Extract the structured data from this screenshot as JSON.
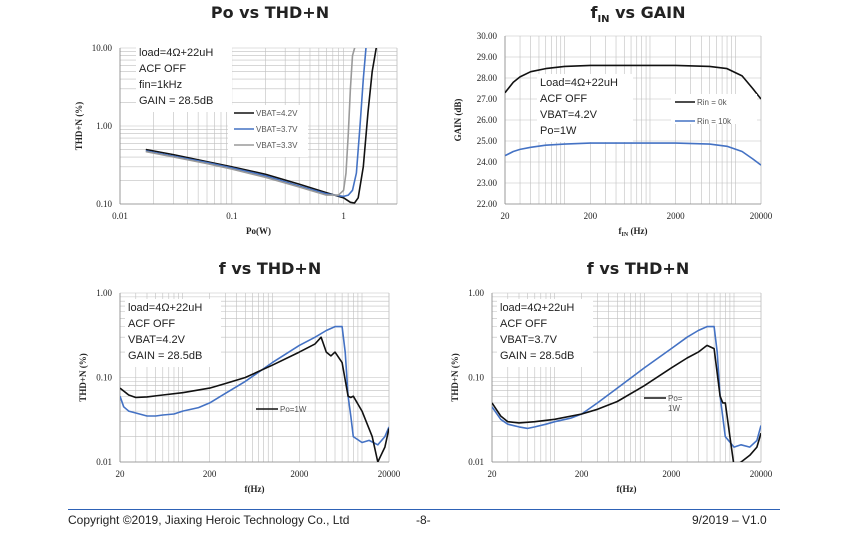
{
  "colors": {
    "black": "#111111",
    "blue": "#4472c4",
    "gray": "#9a9a9a",
    "grid": "#bfbfbf"
  },
  "footer": {
    "copyright": "Copyright ©2019, Jiaxing Heroic Technology Co., Ltd",
    "page": "-8-",
    "version": "9/2019 – V1.0"
  },
  "chart_data": [
    {
      "type": "line",
      "title": "Po vs THD+N",
      "xlabel": "Po(W)",
      "ylabel": "THD+N (%)",
      "x_scale": "log",
      "y_scale": "log",
      "xlim": [
        0.01,
        3
      ],
      "ylim": [
        0.1,
        10
      ],
      "x_ticks": [
        "0.01",
        "0.1",
        "1"
      ],
      "y_ticks": [
        "0.10",
        "1.00",
        "10.00"
      ],
      "annotations": [
        "load=4Ω+22uH",
        "ACF OFF",
        "fin=1kHz",
        "GAIN = 28.5dB"
      ],
      "legend_position": "middle-right",
      "series": [
        {
          "name": "VBAT=4.2V",
          "color": "black",
          "x": [
            0.017,
            0.03,
            0.06,
            0.1,
            0.2,
            0.4,
            0.7,
            1.0,
            1.15,
            1.25,
            1.35,
            1.5,
            1.65,
            1.8,
            2.0
          ],
          "y": [
            0.5,
            0.43,
            0.35,
            0.3,
            0.24,
            0.18,
            0.14,
            0.12,
            0.105,
            0.103,
            0.12,
            0.3,
            1.5,
            5.0,
            12.0
          ]
        },
        {
          "name": "VBAT=3.7V",
          "color": "blue",
          "x": [
            0.017,
            0.03,
            0.06,
            0.1,
            0.2,
            0.4,
            0.7,
            1.0,
            1.1,
            1.2,
            1.3,
            1.4,
            1.5,
            1.6
          ],
          "y": [
            0.48,
            0.41,
            0.34,
            0.29,
            0.23,
            0.17,
            0.135,
            0.125,
            0.13,
            0.15,
            0.25,
            1.0,
            4.0,
            12.0
          ]
        },
        {
          "name": "VBAT=3.3V",
          "color": "gray",
          "x": [
            0.017,
            0.03,
            0.06,
            0.1,
            0.2,
            0.4,
            0.7,
            0.9,
            1.0,
            1.05,
            1.1,
            1.15,
            1.2,
            1.3
          ],
          "y": [
            0.47,
            0.4,
            0.33,
            0.28,
            0.22,
            0.165,
            0.13,
            0.13,
            0.15,
            0.25,
            0.8,
            3.0,
            8.0,
            12.0
          ]
        }
      ]
    },
    {
      "type": "line",
      "title": "fIN vs GAIN",
      "title_main": "f",
      "title_sub": "IN",
      "title_rest": " vs GAIN",
      "xlabel_main": "f",
      "xlabel_sub": "IN",
      "xlabel_rest": " (Hz)",
      "ylabel": "GAIN (dB)",
      "x_scale": "log",
      "y_scale": "linear",
      "xlim": [
        20,
        20000
      ],
      "ylim": [
        22,
        30
      ],
      "x_ticks": [
        "20",
        "200",
        "2000",
        "20000"
      ],
      "y_ticks": [
        "22.00",
        "23.00",
        "24.00",
        "25.00",
        "26.00",
        "27.00",
        "28.00",
        "29.00",
        "30.00"
      ],
      "annotations": [
        "Load=4Ω+22uH",
        "ACF OFF",
        "VBAT=4.2V",
        "Po=1W"
      ],
      "legend_position": "middle-right",
      "series": [
        {
          "name": "Rin = 0k",
          "color": "black",
          "x": [
            20,
            25,
            30,
            40,
            60,
            100,
            200,
            500,
            2000,
            5000,
            8000,
            12000,
            16000,
            20000
          ],
          "y": [
            27.3,
            27.8,
            28.05,
            28.3,
            28.45,
            28.55,
            28.6,
            28.6,
            28.6,
            28.55,
            28.45,
            28.1,
            27.5,
            27.0
          ]
        },
        {
          "name": "Rin = 10k",
          "color": "blue",
          "x": [
            20,
            25,
            30,
            40,
            60,
            100,
            200,
            500,
            2000,
            5000,
            8000,
            12000,
            16000,
            20000
          ],
          "y": [
            24.3,
            24.5,
            24.6,
            24.7,
            24.8,
            24.85,
            24.9,
            24.9,
            24.9,
            24.85,
            24.75,
            24.5,
            24.15,
            23.85
          ]
        }
      ]
    },
    {
      "type": "line",
      "title": "f vs THD+N",
      "xlabel": "f(Hz)",
      "ylabel": "THD+N (%)",
      "x_scale": "log",
      "y_scale": "log",
      "xlim": [
        20,
        20000
      ],
      "ylim": [
        0.01,
        1
      ],
      "x_ticks": [
        "20",
        "200",
        "2000",
        "20000"
      ],
      "y_ticks": [
        "0.01",
        "0.10",
        "1.00"
      ],
      "annotations": [
        "load=4Ω+22uH",
        "ACF OFF",
        "VBAT=4.2V",
        "GAIN = 28.5dB"
      ],
      "legend_position": "middle-right",
      "series": [
        {
          "name": "Po=1W",
          "color": "black",
          "x": [
            20,
            25,
            30,
            40,
            60,
            100,
            200,
            300,
            500,
            1000,
            2000,
            3000,
            3500,
            4000,
            4500,
            5000,
            6000,
            7000,
            7500,
            8000,
            10000,
            13000,
            15000,
            18000,
            20000
          ],
          "y": [
            0.075,
            0.062,
            0.058,
            0.059,
            0.062,
            0.066,
            0.075,
            0.085,
            0.1,
            0.14,
            0.2,
            0.25,
            0.3,
            0.2,
            0.18,
            0.2,
            0.15,
            0.06,
            0.058,
            0.06,
            0.04,
            0.02,
            0.01,
            0.015,
            0.025
          ]
        },
        {
          "name": "Po=1W",
          "color": "blue",
          "x": [
            20,
            22,
            25,
            30,
            40,
            50,
            60,
            80,
            100,
            150,
            200,
            300,
            500,
            1000,
            2000,
            3000,
            4000,
            5000,
            6000,
            6500,
            7000,
            7500,
            8000,
            10000,
            12000,
            15000,
            18000,
            20000
          ],
          "y": [
            0.06,
            0.045,
            0.04,
            0.038,
            0.035,
            0.035,
            0.036,
            0.037,
            0.04,
            0.044,
            0.05,
            0.065,
            0.09,
            0.15,
            0.24,
            0.3,
            0.36,
            0.4,
            0.4,
            0.2,
            0.06,
            0.035,
            0.02,
            0.017,
            0.018,
            0.016,
            0.02,
            0.026
          ]
        }
      ]
    },
    {
      "type": "line",
      "title": "f vs THD+N",
      "xlabel": "f(Hz)",
      "ylabel": "THD+N (%)",
      "x_scale": "log",
      "y_scale": "log",
      "xlim": [
        20,
        20000
      ],
      "ylim": [
        0.01,
        1
      ],
      "x_ticks": [
        "20",
        "200",
        "2000",
        "20000"
      ],
      "y_ticks": [
        "0.01",
        "0.10",
        "1.00"
      ],
      "annotations": [
        "load=4Ω+22uH",
        "ACF OFF",
        "VBAT=3.7V",
        "GAIN = 28.5dB"
      ],
      "legend_position": "middle-right",
      "legend_label_lines": [
        "Po=",
        "1W"
      ],
      "series": [
        {
          "name": "Po=1W",
          "color": "black",
          "x": [
            20,
            25,
            30,
            40,
            60,
            100,
            200,
            300,
            500,
            1000,
            2000,
            3000,
            4000,
            5000,
            6000,
            7000,
            7500,
            8000,
            9000,
            10000,
            12000,
            15000,
            18000,
            20000
          ],
          "y": [
            0.05,
            0.035,
            0.03,
            0.029,
            0.03,
            0.032,
            0.037,
            0.042,
            0.052,
            0.08,
            0.13,
            0.17,
            0.2,
            0.24,
            0.22,
            0.06,
            0.05,
            0.05,
            0.02,
            0.009,
            0.01,
            0.012,
            0.015,
            0.022
          ]
        },
        {
          "name": "Po=1W",
          "color": "blue",
          "x": [
            20,
            25,
            30,
            40,
            50,
            60,
            80,
            100,
            150,
            200,
            300,
            500,
            1000,
            2000,
            3000,
            4000,
            5000,
            6000,
            6500,
            7000,
            8000,
            10000,
            12000,
            15000,
            18000,
            20000
          ],
          "y": [
            0.045,
            0.032,
            0.028,
            0.026,
            0.025,
            0.026,
            0.028,
            0.03,
            0.033,
            0.037,
            0.05,
            0.075,
            0.13,
            0.22,
            0.3,
            0.36,
            0.4,
            0.4,
            0.2,
            0.06,
            0.02,
            0.015,
            0.016,
            0.015,
            0.018,
            0.027
          ]
        }
      ]
    }
  ]
}
